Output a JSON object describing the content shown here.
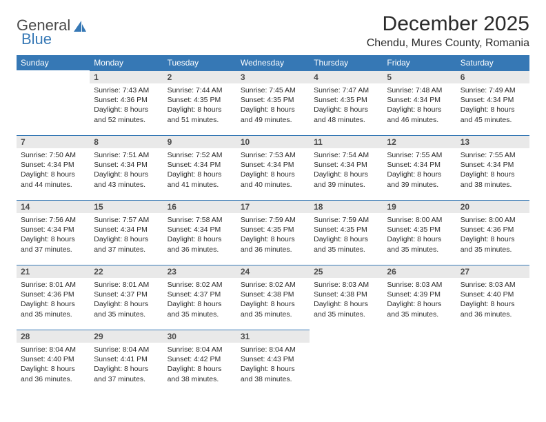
{
  "brand": {
    "part1": "General",
    "part2": "Blue"
  },
  "title": "December 2025",
  "location": "Chendu, Mures County, Romania",
  "colors": {
    "header_bg": "#3678b5",
    "header_fg": "#ffffff",
    "daynum_bg": "#e9e9e9",
    "row_divider": "#3678b5",
    "text": "#2b2b2b",
    "page_bg": "#ffffff"
  },
  "fonts": {
    "title_size": 30,
    "location_size": 16,
    "header_size": 12,
    "body_size": 10.5
  },
  "weekdays": [
    "Sunday",
    "Monday",
    "Tuesday",
    "Wednesday",
    "Thursday",
    "Friday",
    "Saturday"
  ],
  "leading_blanks": 1,
  "days": [
    {
      "n": 1,
      "sunrise": "7:43 AM",
      "sunset": "4:36 PM",
      "daylight": "8 hours and 52 minutes."
    },
    {
      "n": 2,
      "sunrise": "7:44 AM",
      "sunset": "4:35 PM",
      "daylight": "8 hours and 51 minutes."
    },
    {
      "n": 3,
      "sunrise": "7:45 AM",
      "sunset": "4:35 PM",
      "daylight": "8 hours and 49 minutes."
    },
    {
      "n": 4,
      "sunrise": "7:47 AM",
      "sunset": "4:35 PM",
      "daylight": "8 hours and 48 minutes."
    },
    {
      "n": 5,
      "sunrise": "7:48 AM",
      "sunset": "4:34 PM",
      "daylight": "8 hours and 46 minutes."
    },
    {
      "n": 6,
      "sunrise": "7:49 AM",
      "sunset": "4:34 PM",
      "daylight": "8 hours and 45 minutes."
    },
    {
      "n": 7,
      "sunrise": "7:50 AM",
      "sunset": "4:34 PM",
      "daylight": "8 hours and 44 minutes."
    },
    {
      "n": 8,
      "sunrise": "7:51 AM",
      "sunset": "4:34 PM",
      "daylight": "8 hours and 43 minutes."
    },
    {
      "n": 9,
      "sunrise": "7:52 AM",
      "sunset": "4:34 PM",
      "daylight": "8 hours and 41 minutes."
    },
    {
      "n": 10,
      "sunrise": "7:53 AM",
      "sunset": "4:34 PM",
      "daylight": "8 hours and 40 minutes."
    },
    {
      "n": 11,
      "sunrise": "7:54 AM",
      "sunset": "4:34 PM",
      "daylight": "8 hours and 39 minutes."
    },
    {
      "n": 12,
      "sunrise": "7:55 AM",
      "sunset": "4:34 PM",
      "daylight": "8 hours and 39 minutes."
    },
    {
      "n": 13,
      "sunrise": "7:55 AM",
      "sunset": "4:34 PM",
      "daylight": "8 hours and 38 minutes."
    },
    {
      "n": 14,
      "sunrise": "7:56 AM",
      "sunset": "4:34 PM",
      "daylight": "8 hours and 37 minutes."
    },
    {
      "n": 15,
      "sunrise": "7:57 AM",
      "sunset": "4:34 PM",
      "daylight": "8 hours and 37 minutes."
    },
    {
      "n": 16,
      "sunrise": "7:58 AM",
      "sunset": "4:34 PM",
      "daylight": "8 hours and 36 minutes."
    },
    {
      "n": 17,
      "sunrise": "7:59 AM",
      "sunset": "4:35 PM",
      "daylight": "8 hours and 36 minutes."
    },
    {
      "n": 18,
      "sunrise": "7:59 AM",
      "sunset": "4:35 PM",
      "daylight": "8 hours and 35 minutes."
    },
    {
      "n": 19,
      "sunrise": "8:00 AM",
      "sunset": "4:35 PM",
      "daylight": "8 hours and 35 minutes."
    },
    {
      "n": 20,
      "sunrise": "8:00 AM",
      "sunset": "4:36 PM",
      "daylight": "8 hours and 35 minutes."
    },
    {
      "n": 21,
      "sunrise": "8:01 AM",
      "sunset": "4:36 PM",
      "daylight": "8 hours and 35 minutes."
    },
    {
      "n": 22,
      "sunrise": "8:01 AM",
      "sunset": "4:37 PM",
      "daylight": "8 hours and 35 minutes."
    },
    {
      "n": 23,
      "sunrise": "8:02 AM",
      "sunset": "4:37 PM",
      "daylight": "8 hours and 35 minutes."
    },
    {
      "n": 24,
      "sunrise": "8:02 AM",
      "sunset": "4:38 PM",
      "daylight": "8 hours and 35 minutes."
    },
    {
      "n": 25,
      "sunrise": "8:03 AM",
      "sunset": "4:38 PM",
      "daylight": "8 hours and 35 minutes."
    },
    {
      "n": 26,
      "sunrise": "8:03 AM",
      "sunset": "4:39 PM",
      "daylight": "8 hours and 35 minutes."
    },
    {
      "n": 27,
      "sunrise": "8:03 AM",
      "sunset": "4:40 PM",
      "daylight": "8 hours and 36 minutes."
    },
    {
      "n": 28,
      "sunrise": "8:04 AM",
      "sunset": "4:40 PM",
      "daylight": "8 hours and 36 minutes."
    },
    {
      "n": 29,
      "sunrise": "8:04 AM",
      "sunset": "4:41 PM",
      "daylight": "8 hours and 37 minutes."
    },
    {
      "n": 30,
      "sunrise": "8:04 AM",
      "sunset": "4:42 PM",
      "daylight": "8 hours and 38 minutes."
    },
    {
      "n": 31,
      "sunrise": "8:04 AM",
      "sunset": "4:43 PM",
      "daylight": "8 hours and 38 minutes."
    }
  ],
  "labels": {
    "sunrise": "Sunrise:",
    "sunset": "Sunset:",
    "daylight": "Daylight:"
  }
}
